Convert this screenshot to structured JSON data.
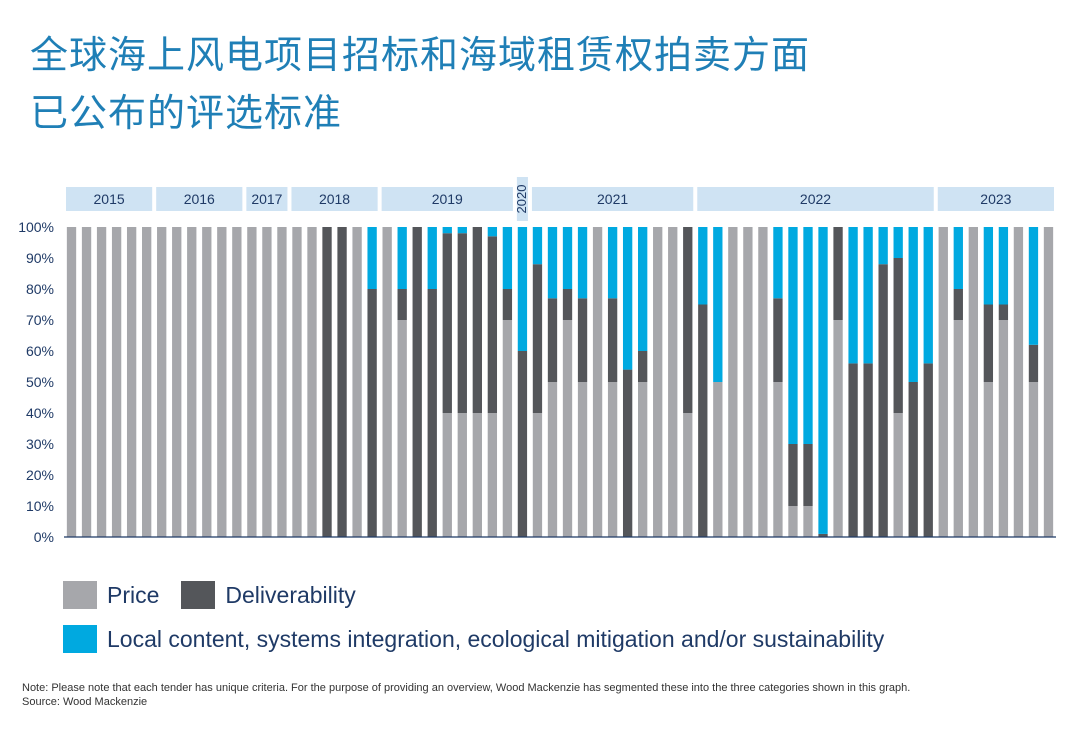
{
  "title": {
    "line1": "全球海上风电项目招标和海域租赁权拍卖方面",
    "line2": "已公布的评选标准"
  },
  "colors": {
    "title": "#1f7fb6",
    "price": "#a6a7ab",
    "deliverability": "#54565a",
    "local": "#00a9e0",
    "year_band": "#cfe3f3",
    "axis_text": "#1f3a66"
  },
  "chart_data": {
    "type": "bar",
    "stacked": true,
    "ylim": [
      0,
      100
    ],
    "yticks": [
      "0%",
      "10%",
      "20%",
      "30%",
      "40%",
      "50%",
      "60%",
      "70%",
      "80%",
      "90%",
      "100%"
    ],
    "year_groups": [
      {
        "label": "2015",
        "count": 6
      },
      {
        "label": "2016",
        "count": 6
      },
      {
        "label": "2017",
        "count": 3
      },
      {
        "label": "2018",
        "count": 6
      },
      {
        "label": "2019",
        "count": 9
      },
      {
        "label": "2020",
        "count": 1,
        "vertical": true
      },
      {
        "label": "2021",
        "count": 11
      },
      {
        "label": "2022",
        "count": 16
      },
      {
        "label": "2023",
        "count": 8
      }
    ],
    "series_names": [
      "Price",
      "Deliverability",
      "Local content, systems integration, ecological mitigation and/or sustainability"
    ],
    "bars": [
      [
        100,
        0,
        0
      ],
      [
        100,
        0,
        0
      ],
      [
        100,
        0,
        0
      ],
      [
        100,
        0,
        0
      ],
      [
        100,
        0,
        0
      ],
      [
        100,
        0,
        0
      ],
      [
        100,
        0,
        0
      ],
      [
        100,
        0,
        0
      ],
      [
        100,
        0,
        0
      ],
      [
        100,
        0,
        0
      ],
      [
        100,
        0,
        0
      ],
      [
        100,
        0,
        0
      ],
      [
        100,
        0,
        0
      ],
      [
        100,
        0,
        0
      ],
      [
        100,
        0,
        0
      ],
      [
        100,
        0,
        0
      ],
      [
        100,
        0,
        0
      ],
      [
        0,
        100,
        0
      ],
      [
        0,
        100,
        0
      ],
      [
        100,
        0,
        0
      ],
      [
        0,
        80,
        20
      ],
      [
        100,
        0,
        0
      ],
      [
        70,
        10,
        20
      ],
      [
        0,
        100,
        0
      ],
      [
        0,
        80,
        20
      ],
      [
        40,
        58,
        2
      ],
      [
        40,
        58,
        2
      ],
      [
        40,
        60,
        0
      ],
      [
        40,
        57,
        3
      ],
      [
        70,
        10,
        20
      ],
      [
        0,
        60,
        40
      ],
      [
        40,
        48,
        12
      ],
      [
        50,
        27,
        23
      ],
      [
        70,
        10,
        20
      ],
      [
        50,
        27,
        23
      ],
      [
        100,
        0,
        0
      ],
      [
        50,
        27,
        23
      ],
      [
        0,
        54,
        46
      ],
      [
        50,
        10,
        40
      ],
      [
        100,
        0,
        0
      ],
      [
        100,
        0,
        0
      ],
      [
        40,
        60,
        0
      ],
      [
        0,
        75,
        25
      ],
      [
        50,
        0,
        50
      ],
      [
        100,
        0,
        0
      ],
      [
        100,
        0,
        0
      ],
      [
        100,
        0,
        0
      ],
      [
        50,
        27,
        23
      ],
      [
        10,
        20,
        70
      ],
      [
        10,
        20,
        70
      ],
      [
        0,
        1,
        99
      ],
      [
        70,
        30,
        0
      ],
      [
        0,
        56,
        44
      ],
      [
        0,
        56,
        44
      ],
      [
        0,
        88,
        12
      ],
      [
        40,
        50,
        10
      ],
      [
        0,
        50,
        50
      ],
      [
        0,
        56,
        44
      ],
      [
        100,
        0,
        0
      ],
      [
        70,
        10,
        20
      ],
      [
        100,
        0,
        0
      ],
      [
        50,
        25,
        25
      ],
      [
        70,
        5,
        25
      ],
      [
        100,
        0,
        0
      ],
      [
        50,
        12,
        38
      ],
      [
        100,
        0,
        0
      ]
    ]
  },
  "legend": {
    "price": "Price",
    "deliverability": "Deliverability",
    "local": "Local content, systems integration, ecological mitigation and/or sustainability"
  },
  "note": {
    "line1": "Note: Please note that each tender has unique criteria. For the purpose of providing an overview, Wood Mackenzie has segmented these into the three categories shown in this graph.",
    "line2": "Source: Wood Mackenzie"
  }
}
